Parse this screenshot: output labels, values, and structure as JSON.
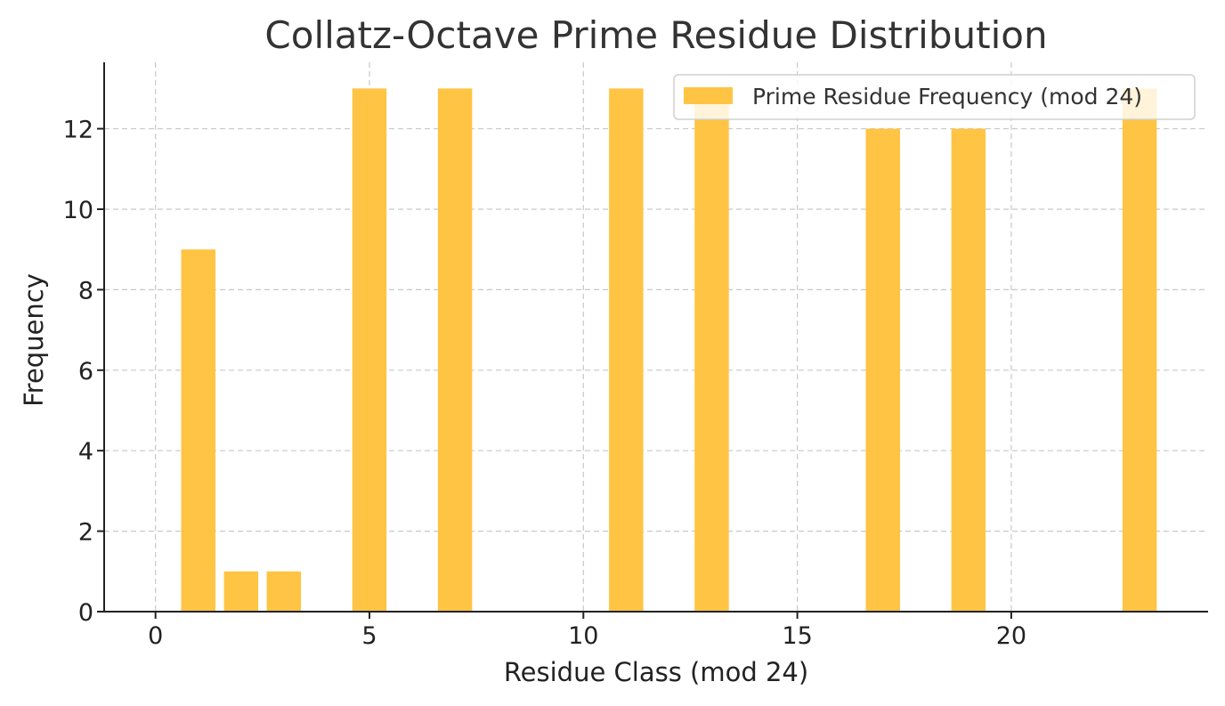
{
  "chart_data": {
    "type": "bar",
    "title": "Collatz-Octave Prime Residue Distribution",
    "xlabel": "Residue Class (mod 24)",
    "ylabel": "Frequency",
    "x": [
      1,
      2,
      3,
      5,
      7,
      11,
      13,
      17,
      19,
      23
    ],
    "series": [
      {
        "name": "Prime Residue Frequency (mod 24)",
        "values": [
          9,
          1,
          1,
          13,
          13,
          13,
          13,
          12,
          12,
          13
        ],
        "color": "#ffc443"
      }
    ],
    "xlim": [
      -1.2,
      24.6
    ],
    "ylim": [
      0,
      13.65
    ],
    "xticks": [
      0,
      5,
      10,
      15,
      20
    ],
    "yticks": [
      0,
      2,
      4,
      6,
      8,
      10,
      12
    ],
    "grid": true,
    "legend_position": "top-right"
  }
}
